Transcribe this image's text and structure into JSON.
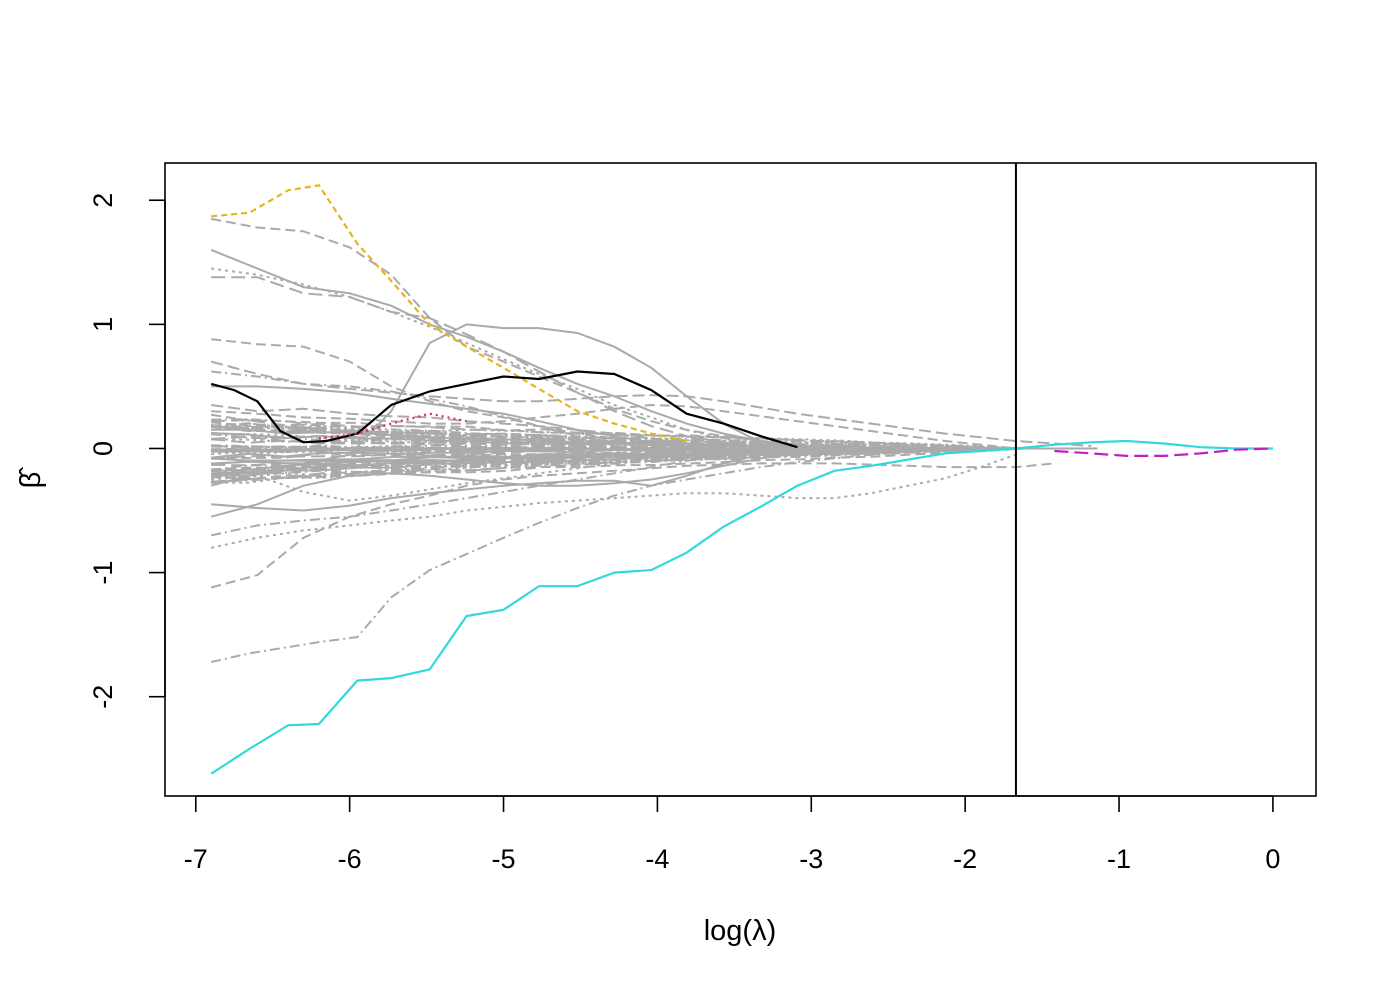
{
  "chart_data": {
    "type": "line",
    "title": "",
    "xlabel": "log(λ)",
    "ylabel": "β̂",
    "xlim": [
      -7.2,
      0.28
    ],
    "ylim": [
      -2.8,
      2.3
    ],
    "xticks": [
      "-7",
      "-6",
      "-5",
      "-4",
      "-3",
      "-2",
      "-1",
      "0"
    ],
    "yticks": [
      "-2",
      "-1",
      "0",
      "1",
      "2"
    ],
    "vline_x": -1.67,
    "grid": false,
    "legend": "none",
    "colors": {
      "background": "#dcdcdc",
      "cyan": "#33d8dc",
      "gold": "#e6b420",
      "black": "#000000",
      "magenta": "#c020c0",
      "red": "#d83050",
      "box": "#000000"
    },
    "series": [
      {
        "color": "cyan",
        "dash": "solid",
        "x": [
          -6.9,
          -6.65,
          -6.4,
          -6.2,
          -5.95,
          -5.73,
          -5.48,
          -5.24,
          -5.0,
          -4.77,
          -4.52,
          -4.28,
          -4.04,
          -3.81,
          -3.57,
          -3.33,
          -3.09,
          -2.85,
          -2.61,
          -2.37,
          -2.13,
          -1.9,
          -1.67,
          -1.42,
          -1.18,
          -0.95,
          -0.71,
          -0.47,
          -0.24,
          0.0
        ],
        "y": [
          -2.62,
          -2.42,
          -2.23,
          -2.22,
          -1.87,
          -1.85,
          -1.78,
          -1.35,
          -1.3,
          -1.11,
          -1.11,
          -1.0,
          -0.98,
          -0.84,
          -0.63,
          -0.47,
          -0.3,
          -0.18,
          -0.14,
          -0.09,
          -0.04,
          -0.02,
          0.0,
          0.03,
          0.05,
          0.06,
          0.04,
          0.01,
          0.0,
          0.0
        ]
      },
      {
        "color": "gold",
        "dash": "6,4",
        "x": [
          -6.9,
          -6.65,
          -6.4,
          -6.2,
          -5.95,
          -5.73,
          -5.48,
          -5.24,
          -5.0,
          -4.77,
          -4.52,
          -4.28,
          -4.04,
          -3.81
        ],
        "y": [
          1.87,
          1.9,
          2.08,
          2.12,
          1.65,
          1.35,
          1.0,
          0.82,
          0.65,
          0.48,
          0.3,
          0.2,
          0.12,
          0.06
        ]
      },
      {
        "color": "black",
        "dash": "solid",
        "x": [
          -6.9,
          -6.75,
          -6.6,
          -6.45,
          -6.3,
          -6.15,
          -5.95,
          -5.73,
          -5.48,
          -5.24,
          -5.0,
          -4.77,
          -4.52,
          -4.28,
          -4.04,
          -3.81,
          -3.57,
          -3.33,
          -3.09
        ],
        "y": [
          0.52,
          0.47,
          0.38,
          0.14,
          0.05,
          0.06,
          0.12,
          0.35,
          0.46,
          0.52,
          0.58,
          0.56,
          0.62,
          0.6,
          0.47,
          0.28,
          0.2,
          0.1,
          0.01
        ]
      },
      {
        "color": "magenta",
        "dash": "14,6",
        "x": [
          -1.42,
          -1.18,
          -0.95,
          -0.71,
          -0.47,
          -0.24,
          0.0
        ],
        "y": [
          -0.02,
          -0.04,
          -0.06,
          -0.06,
          -0.04,
          -0.01,
          0.0
        ]
      },
      {
        "color": "red",
        "dash": "2,4",
        "x": [
          -6.2,
          -5.95,
          -5.73,
          -5.48,
          -5.24
        ],
        "y": [
          0.08,
          0.12,
          0.2,
          0.28,
          0.22
        ]
      }
    ],
    "gray_paths": [
      {
        "x": [
          -6.9,
          -6.65,
          -6.4,
          -6.2,
          -5.95,
          -5.73,
          -5.48,
          -5.24,
          -5.0,
          -4.77,
          -4.52,
          -4.28,
          -4.04,
          -3.81,
          -3.57,
          -3.33,
          -3.09,
          -2.85,
          -2.61,
          -2.37,
          -2.13,
          -1.9,
          -1.67
        ],
        "y": [
          -1.72,
          -1.65,
          -1.6,
          -1.56,
          -1.52,
          -1.2,
          -0.98,
          -0.85,
          -0.72,
          -0.6,
          -0.48,
          -0.38,
          -0.3,
          -0.25,
          -0.2,
          -0.15,
          -0.11,
          -0.08,
          -0.05,
          -0.03,
          -0.02,
          -0.01,
          0.0
        ],
        "dash": "10,4,2,4"
      },
      {
        "x": [
          -6.9,
          -6.6,
          -6.3,
          -6.0,
          -5.73,
          -5.48,
          -5.24,
          -5.0,
          -4.77,
          -4.52,
          -4.28,
          -4.04,
          -3.81,
          -3.57,
          -3.33,
          -3.09,
          -2.85,
          -2.61,
          -2.37,
          -2.13,
          -1.9,
          -1.67
        ],
        "y": [
          1.85,
          1.78,
          1.75,
          1.62,
          1.4,
          1.05,
          0.82,
          0.7,
          0.58,
          0.45,
          0.32,
          0.22,
          0.15,
          0.1,
          0.06,
          0.03,
          0.01,
          0.0,
          0.0,
          0.0,
          0.0,
          0.0
        ],
        "dash": "10,5"
      },
      {
        "x": [
          -6.9,
          -6.6,
          -6.3,
          -6.0,
          -5.73,
          -5.48,
          -5.24,
          -5.0,
          -4.77,
          -4.52,
          -4.28,
          -4.04,
          -3.81,
          -3.57,
          -3.33,
          -3.09,
          -2.85
        ],
        "y": [
          1.6,
          1.45,
          1.3,
          1.25,
          1.15,
          1.0,
          0.9,
          0.78,
          0.65,
          0.52,
          0.42,
          0.3,
          0.2,
          0.12,
          0.06,
          0.03,
          0.0
        ],
        "dash": "solid"
      },
      {
        "x": [
          -6.9,
          -6.6,
          -6.3,
          -6.0,
          -5.73,
          -5.48,
          -5.24,
          -5.0,
          -4.77,
          -4.52,
          -4.28,
          -4.04,
          -3.81,
          -3.57,
          -3.33,
          -3.09
        ],
        "y": [
          1.45,
          1.4,
          1.32,
          1.22,
          1.1,
          0.98,
          0.85,
          0.72,
          0.6,
          0.48,
          0.35,
          0.25,
          0.15,
          0.08,
          0.03,
          0.0
        ],
        "dash": "3,4"
      },
      {
        "x": [
          -6.9,
          -6.6,
          -6.3,
          -6.0,
          -5.73,
          -5.48,
          -5.24,
          -5.0,
          -4.77,
          -4.52,
          -4.28,
          -4.04,
          -3.81,
          -3.57,
          -3.33
        ],
        "y": [
          1.38,
          1.38,
          1.25,
          1.22,
          1.1,
          1.05,
          0.92,
          0.78,
          0.62,
          0.45,
          0.3,
          0.18,
          0.1,
          0.05,
          0.0
        ],
        "dash": "14,6"
      },
      {
        "x": [
          -6.9,
          -6.6,
          -6.3,
          -6.0,
          -5.73,
          -5.48,
          -5.24,
          -5.0,
          -4.77,
          -4.52,
          -4.28,
          -4.04,
          -3.81,
          -3.57
        ],
        "y": [
          0.88,
          0.84,
          0.82,
          0.7,
          0.5,
          0.38,
          0.3,
          0.25,
          0.18,
          0.12,
          0.08,
          0.05,
          0.02,
          0.0
        ],
        "dash": "10,5"
      },
      {
        "x": [
          -6.9,
          -6.6,
          -6.3,
          -6.0,
          -5.73,
          -5.48,
          -5.24,
          -5.0,
          -4.77,
          -4.52,
          -4.28,
          -4.04,
          -3.81,
          -3.57,
          -3.33
        ],
        "y": [
          -0.3,
          -0.2,
          -0.12,
          -0.05,
          0.3,
          0.85,
          1.0,
          0.97,
          0.97,
          0.93,
          0.82,
          0.65,
          0.42,
          0.2,
          0.05
        ],
        "dash": "solid"
      },
      {
        "x": [
          -6.9,
          -6.6,
          -6.3,
          -6.0,
          -5.73,
          -5.48,
          -5.24,
          -5.0,
          -4.77,
          -4.52,
          -4.28,
          -4.04,
          -3.81,
          -3.57,
          -3.33,
          -3.09,
          -2.85,
          -2.61,
          -2.37,
          -2.13,
          -1.9,
          -1.67,
          -1.42,
          -1.18
        ],
        "y": [
          0.7,
          0.6,
          0.52,
          0.48,
          0.45,
          0.42,
          0.4,
          0.38,
          0.38,
          0.4,
          0.42,
          0.43,
          0.42,
          0.38,
          0.33,
          0.28,
          0.24,
          0.2,
          0.16,
          0.12,
          0.09,
          0.06,
          0.04,
          0.02
        ],
        "dash": "12,5"
      },
      {
        "x": [
          -6.9,
          -6.6,
          -6.3,
          -6.0,
          -5.73,
          -5.48,
          -5.24,
          -5.0,
          -4.77,
          -4.52,
          -4.28,
          -4.04,
          -3.81,
          -3.57,
          -3.33,
          -3.09,
          -2.85,
          -2.61,
          -2.37,
          -2.13,
          -1.9,
          -1.67
        ],
        "y": [
          -0.8,
          -0.72,
          -0.66,
          -0.62,
          -0.58,
          -0.55,
          -0.5,
          -0.47,
          -0.44,
          -0.42,
          -0.4,
          -0.38,
          -0.36,
          -0.36,
          -0.38,
          -0.4,
          -0.4,
          -0.36,
          -0.3,
          -0.24,
          -0.15,
          -0.05
        ],
        "dash": "3,4"
      },
      {
        "x": [
          -6.9,
          -6.6,
          -6.3,
          -6.0,
          -5.73,
          -5.48,
          -5.24,
          -5.0,
          -4.77,
          -4.52,
          -4.28,
          -4.04,
          -3.81,
          -3.57,
          -3.33,
          -3.09,
          -2.85,
          -2.61,
          -2.37,
          -2.13,
          -1.9,
          -1.67,
          -1.42
        ],
        "y": [
          -1.12,
          -1.02,
          -0.72,
          -0.55,
          -0.45,
          -0.38,
          -0.3,
          -0.25,
          -0.22,
          -0.2,
          -0.18,
          -0.16,
          -0.14,
          -0.13,
          -0.12,
          -0.12,
          -0.12,
          -0.13,
          -0.14,
          -0.15,
          -0.15,
          -0.15,
          -0.12
        ],
        "dash": "10,5"
      },
      {
        "x": [
          -6.9,
          -6.6,
          -6.3,
          -6.0,
          -5.73,
          -5.48,
          -5.24,
          -5.0,
          -4.77,
          -4.52,
          -4.28,
          -4.04,
          -3.81,
          -3.57,
          -3.33,
          -3.09,
          -2.85
        ],
        "y": [
          -0.55,
          -0.45,
          -0.3,
          -0.22,
          -0.2,
          -0.22,
          -0.25,
          -0.28,
          -0.3,
          -0.3,
          -0.28,
          -0.25,
          -0.2,
          -0.14,
          -0.08,
          -0.04,
          0.0
        ],
        "dash": "solid"
      },
      {
        "x": [
          -6.9,
          -6.6,
          -6.3,
          -6.0,
          -5.73,
          -5.48,
          -5.24,
          -5.0,
          -4.77,
          -4.52,
          -4.28,
          -4.04,
          -3.81,
          -3.57,
          -3.33,
          -3.09
        ],
        "y": [
          -0.45,
          -0.48,
          -0.5,
          -0.46,
          -0.4,
          -0.36,
          -0.33,
          -0.3,
          -0.28,
          -0.26,
          -0.26,
          -0.3,
          -0.22,
          -0.12,
          -0.05,
          0.0
        ],
        "dash": "solid"
      },
      {
        "x": [
          -6.9,
          -6.6,
          -6.3,
          -6.0,
          -5.73,
          -5.48,
          -5.24,
          -5.0,
          -4.77,
          -4.52,
          -4.28,
          -4.04,
          -3.81,
          -3.57,
          -3.33
        ],
        "y": [
          -0.7,
          -0.62,
          -0.58,
          -0.55,
          -0.5,
          -0.45,
          -0.4,
          -0.35,
          -0.3,
          -0.25,
          -0.2,
          -0.15,
          -0.1,
          -0.05,
          0.0
        ],
        "dash": "10,4,2,4"
      },
      {
        "x": [
          -6.9,
          -6.6,
          -6.3,
          -6.0,
          -5.73,
          -5.48,
          -5.24,
          -5.0,
          -4.77,
          -4.52,
          -4.28,
          -4.04,
          -3.81
        ],
        "y": [
          0.5,
          0.5,
          0.48,
          0.45,
          0.4,
          0.36,
          0.32,
          0.28,
          0.22,
          0.15,
          0.1,
          0.05,
          0.0
        ],
        "dash": "solid"
      },
      {
        "x": [
          -6.9,
          -6.6,
          -6.3,
          -6.0,
          -5.73,
          -5.48,
          -5.24,
          -5.0,
          -4.77,
          -4.52,
          -4.28,
          -4.04,
          -3.81,
          -3.57
        ],
        "y": [
          0.35,
          0.3,
          0.32,
          0.28,
          0.26,
          0.25,
          0.22,
          0.2,
          0.18,
          0.15,
          0.12,
          0.08,
          0.04,
          0.0
        ],
        "dash": "12,5"
      },
      {
        "x": [
          -6.9,
          -6.6,
          -6.3,
          -6.0,
          -5.73,
          -5.48,
          -5.24,
          -5.0,
          -4.77,
          -4.52,
          -4.28,
          -4.04,
          -3.81,
          -3.57,
          -3.33,
          -3.09
        ],
        "y": [
          -0.25,
          -0.22,
          -0.35,
          -0.42,
          -0.38,
          -0.33,
          -0.28,
          -0.24,
          -0.2,
          -0.16,
          -0.12,
          -0.08,
          -0.05,
          -0.02,
          -0.01,
          0.0
        ],
        "dash": "3,4"
      },
      {
        "x": [
          -6.9,
          -6.6,
          -6.3,
          -6.0,
          -5.73,
          -5.48,
          -5.24,
          -5.0,
          -4.77,
          -4.52,
          -4.28,
          -4.04
        ],
        "y": [
          0.62,
          0.58,
          0.52,
          0.5,
          0.46,
          0.4,
          0.34,
          0.26,
          0.18,
          0.1,
          0.05,
          0.0
        ],
        "dash": "10,4,2,4"
      },
      {
        "x": [
          -6.9,
          -6.6,
          -6.3,
          -6.0,
          -5.73,
          -5.48,
          -5.24,
          -5.0,
          -4.77,
          -4.52,
          -4.28,
          -4.04,
          -3.81,
          -3.57,
          -3.33,
          -3.09,
          -2.85,
          -2.61,
          -2.37,
          -2.13,
          -1.9,
          -1.67
        ],
        "y": [
          0.3,
          0.28,
          0.25,
          0.24,
          0.22,
          0.2,
          0.2,
          0.22,
          0.25,
          0.28,
          0.32,
          0.35,
          0.34,
          0.3,
          0.26,
          0.22,
          0.18,
          0.14,
          0.1,
          0.06,
          0.03,
          0.0
        ],
        "dash": "10,5"
      }
    ]
  }
}
